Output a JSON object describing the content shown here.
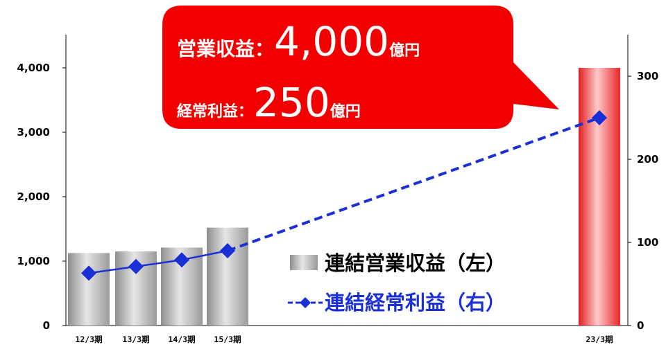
{
  "chart_data": {
    "type": "bar",
    "categories": [
      "12/3期",
      "13/3期",
      "14/3期",
      "15/3期",
      "23/3期"
    ],
    "series": [
      {
        "name": "連結営業収益（左）",
        "type": "bar",
        "axis": "left",
        "values": [
          1125,
          1150,
          1210,
          1520,
          4000
        ],
        "colors": [
          "#a8a8a8",
          "#a8a8a8",
          "#a8a8a8",
          "#a8a8a8",
          "#e8262a"
        ]
      },
      {
        "name": "連結経常利益（右）",
        "type": "line",
        "axis": "right",
        "values": [
          63,
          71,
          79,
          90,
          250
        ],
        "color": "#1a2fd6"
      }
    ],
    "y_left": {
      "min": 0,
      "max": 4000,
      "ticks": [
        "0",
        "1,000",
        "2,000",
        "3,000",
        "4,000"
      ]
    },
    "y_right": {
      "min": 0,
      "max": 300,
      "ticks": [
        "0",
        "100",
        "200",
        "300"
      ]
    },
    "grid": false,
    "legend_position": "bottom-center"
  },
  "callout": {
    "line1_label": "営業収益：",
    "line1_value": "4,000",
    "line1_unit": "億円",
    "line2_label": "経常利益：",
    "line2_value": "250",
    "line2_unit": "億円",
    "color": "#f20000"
  },
  "legend": {
    "bar_label": "連結営業収益（左）",
    "line_label": "連結経常利益（右）",
    "line_color": "#1a2fd6"
  }
}
